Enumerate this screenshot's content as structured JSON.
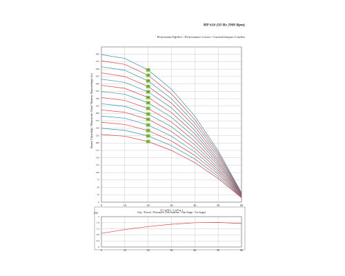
{
  "chart_data": [
    {
      "type": "line",
      "title": "MP 616 (50 Hz 2900 Rpm)",
      "subtitle": "Performans Eğrileri / Performance Curves / Caractéristiques Courbes",
      "xlabel": "Q ( m³/h ) / ( m³/sa )",
      "ylabel": "Basma Yüksekliği / Manometric Head / Hauteur Manométrique (m)",
      "x": [
        0,
        10,
        20,
        30,
        40,
        50,
        60
      ],
      "xlim": [
        0,
        60
      ],
      "xticks": [
        0,
        10,
        20,
        30,
        40,
        50,
        60
      ],
      "ylim": [
        0,
        525
      ],
      "yticks": [
        0,
        25,
        50,
        75,
        100,
        125,
        150,
        175,
        200,
        225,
        250,
        275,
        300,
        325,
        350,
        375,
        400,
        425,
        450,
        475,
        500
      ],
      "grid": true,
      "series": [
        {
          "name": "24",
          "color": "#2f8fa8",
          "values": [
            499,
            486,
            447,
            382,
            291,
            174,
            32
          ]
        },
        {
          "name": "23",
          "color": "#e03a3a",
          "values": [
            478,
            466,
            429,
            366,
            279,
            167,
            30
          ]
        },
        {
          "name": "22",
          "color": "#2f8fa8",
          "values": [
            458,
            446,
            410,
            350,
            267,
            160,
            29
          ]
        },
        {
          "name": "21",
          "color": "#e03a3a",
          "values": [
            437,
            425,
            391,
            335,
            255,
            153,
            28
          ]
        },
        {
          "name": "20",
          "color": "#2f8fa8",
          "values": [
            416,
            405,
            373,
            319,
            243,
            145,
            26
          ]
        },
        {
          "name": "19",
          "color": "#e03a3a",
          "values": [
            395,
            385,
            354,
            303,
            231,
            138,
            25
          ]
        },
        {
          "name": "18",
          "color": "#2f8fa8",
          "values": [
            374,
            365,
            336,
            287,
            219,
            131,
            24
          ]
        },
        {
          "name": "17",
          "color": "#e03a3a",
          "values": [
            354,
            344,
            317,
            271,
            206,
            124,
            22
          ]
        },
        {
          "name": "16",
          "color": "#2f8fa8",
          "values": [
            333,
            324,
            298,
            255,
            194,
            116,
            21
          ]
        },
        {
          "name": "15",
          "color": "#e03a3a",
          "values": [
            312,
            304,
            280,
            239,
            182,
            109,
            20
          ]
        },
        {
          "name": "14",
          "color": "#2f8fa8",
          "values": [
            291,
            284,
            261,
            223,
            170,
            102,
            18
          ]
        },
        {
          "name": "13",
          "color": "#e03a3a",
          "values": [
            270,
            263,
            242,
            207,
            158,
            95,
            17
          ]
        },
        {
          "name": "12",
          "color": "#2f8fa8",
          "values": [
            250,
            243,
            224,
            191,
            146,
            87,
            16
          ]
        },
        {
          "name": "11",
          "color": "#e03a3a",
          "values": [
            229,
            223,
            205,
            175,
            134,
            80,
            15
          ]
        }
      ]
    },
    {
      "type": "line",
      "title": "Güç / Power / Puissance (Tek kademe / One Stage / Un étage)",
      "ylabel": "kW",
      "x": [
        0,
        10,
        20,
        30,
        40,
        50,
        60
      ],
      "xlim": [
        0,
        60
      ],
      "xticks": [
        0,
        10,
        20,
        30,
        40,
        50,
        60
      ],
      "ylim": [
        0,
        2
      ],
      "yticks": [
        0,
        0.4,
        0.8,
        1.2,
        1.6,
        2
      ],
      "grid": true,
      "series": [
        {
          "color": "#e03a3a",
          "values": [
            0.9,
            1.15,
            1.35,
            1.5,
            1.6,
            1.62,
            1.55
          ]
        }
      ]
    }
  ]
}
